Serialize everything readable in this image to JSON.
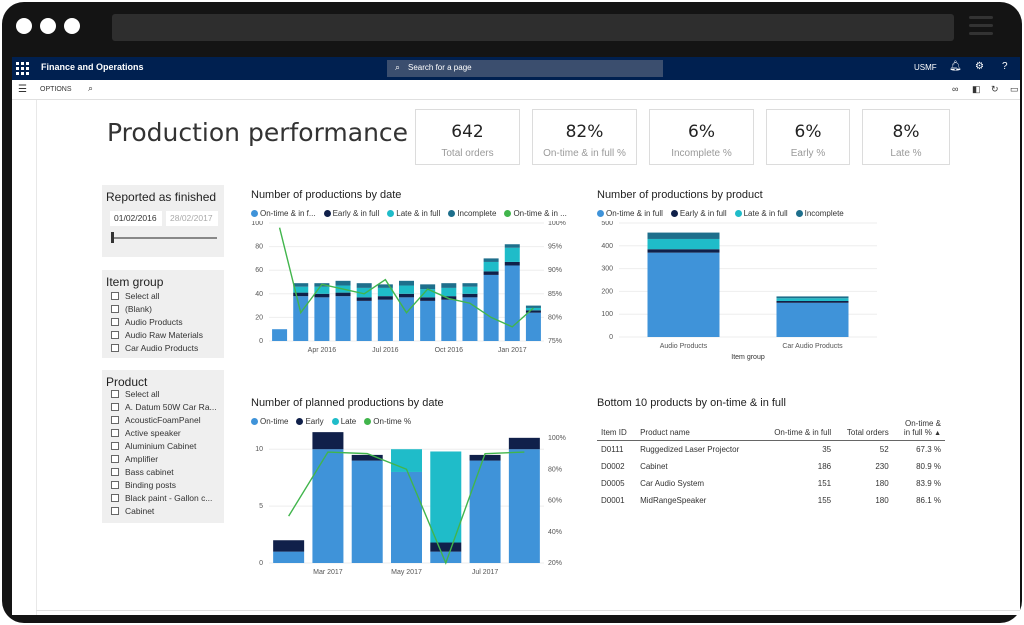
{
  "app": {
    "name": "Finance and Operations",
    "search_placeholder": "Search for a page",
    "company": "USMF",
    "options_label": "OPTIONS"
  },
  "icons": {
    "waffle": "app-launcher-icon",
    "search": "search-icon",
    "bell": "bell-icon",
    "gear": "gear-icon",
    "help": "help-icon",
    "menu": "hamburger-icon",
    "link": "link-icon",
    "office": "office-icon",
    "refresh": "refresh-icon"
  },
  "page": {
    "title": "Production performance"
  },
  "kpis": [
    {
      "value": "642",
      "label": "Total orders"
    },
    {
      "value": "82%",
      "label": "On-time & in full %"
    },
    {
      "value": "6%",
      "label": "Incomplete %"
    },
    {
      "value": "6%",
      "label": "Early %"
    },
    {
      "value": "8%",
      "label": "Late %"
    }
  ],
  "slicers": {
    "reported": {
      "title": "Reported as finished",
      "start": "01/02/2016",
      "end": "28/02/2017"
    },
    "item_group": {
      "title": "Item group",
      "items": [
        "Select all",
        "(Blank)",
        "Audio Products",
        "Audio Raw Materials",
        "Car Audio Products"
      ]
    },
    "product": {
      "title": "Product",
      "items": [
        "Select all",
        "A. Datum 50W Car Ra...",
        "AcousticFoamPanel",
        "Active speaker",
        "Aluminium Cabinet",
        "Amplifier",
        "Bass cabinet",
        "Binding posts",
        "Black paint - Gallon c...",
        "Cabinet"
      ]
    }
  },
  "colors": {
    "ontime": "#3f93d9",
    "early": "#10204a",
    "late": "#1fbcc9",
    "incomplete": "#1e6f8c",
    "ontime_pct": "#41b54c",
    "nav": "#002050"
  },
  "chart_data": [
    {
      "type": "bar",
      "title": "Number of productions by date",
      "legend": [
        "On-time & in f...",
        "Early & in full",
        "Late & in full",
        "Incomplete",
        "On-time & in ..."
      ],
      "x_tick_labels": [
        "Apr 2016",
        "Jul 2016",
        "Oct 2016",
        "Jan 2017"
      ],
      "y_ticks": [
        "0",
        "20",
        "40",
        "60",
        "80",
        "100"
      ],
      "y2_ticks": [
        "75%",
        "80%",
        "85%",
        "90%",
        "95%",
        "100%"
      ],
      "ylim": [
        0,
        100
      ],
      "y2lim": [
        75,
        100
      ],
      "categories": [
        "Feb 2016",
        "Mar 2016",
        "Apr 2016",
        "May 2016",
        "Jun 2016",
        "Jul 2016",
        "Aug 2016",
        "Sep 2016",
        "Oct 2016",
        "Nov 2016",
        "Dec 2016",
        "Jan 2017",
        "Feb 2017"
      ],
      "series": [
        {
          "name": "On-time & in f...",
          "values": [
            10,
            38,
            37,
            38,
            34,
            35,
            37,
            34,
            35,
            37,
            56,
            64,
            24
          ]
        },
        {
          "name": "Early & in full",
          "values": [
            0,
            3,
            3,
            3,
            3,
            3,
            3,
            3,
            3,
            3,
            3,
            3,
            2
          ]
        },
        {
          "name": "Late & in full",
          "values": [
            0,
            5,
            6,
            6,
            8,
            7,
            7,
            7,
            7,
            6,
            8,
            12,
            2
          ]
        },
        {
          "name": "Incomplete",
          "values": [
            0,
            3,
            3,
            4,
            4,
            3,
            4,
            4,
            4,
            3,
            3,
            3,
            2
          ]
        }
      ],
      "line": {
        "name": "On-time & in ...",
        "values": [
          99,
          81,
          87,
          86,
          85,
          88,
          81,
          86,
          84,
          83,
          80,
          78,
          82
        ]
      }
    },
    {
      "type": "bar",
      "title": "Number of productions by product",
      "legend": [
        "On-time & in full",
        "Early & in full",
        "Late & in full",
        "Incomplete"
      ],
      "xlabel": "Item group",
      "y_ticks": [
        "0",
        "100",
        "200",
        "300",
        "400",
        "500"
      ],
      "ylim": [
        0,
        500
      ],
      "categories": [
        "Audio Products",
        "Car Audio Products"
      ],
      "series": [
        {
          "name": "On-time & in full",
          "values": [
            370,
            150
          ]
        },
        {
          "name": "Early & in full",
          "values": [
            15,
            8
          ]
        },
        {
          "name": "Late & in full",
          "values": [
            45,
            12
          ]
        },
        {
          "name": "Incomplete",
          "values": [
            28,
            8
          ]
        }
      ]
    },
    {
      "type": "bar",
      "title": "Number of planned productions by date",
      "legend": [
        "On-time",
        "Early",
        "Late",
        "On-time %"
      ],
      "x_tick_labels": [
        "Mar 2017",
        "May 2017",
        "Jul 2017"
      ],
      "y_ticks": [
        "0",
        "5",
        "10"
      ],
      "y2_ticks": [
        "20%",
        "40%",
        "60%",
        "80%",
        "100%"
      ],
      "ylim": [
        0,
        11.6
      ],
      "y2lim": [
        20,
        100
      ],
      "categories": [
        "Feb 2017",
        "Mar 2017",
        "Apr 2017",
        "May 2017",
        "Jun 2017",
        "Jul 2017",
        "Aug 2017"
      ],
      "series": [
        {
          "name": "On-time",
          "values": [
            1,
            10,
            9,
            8,
            1,
            9,
            10
          ]
        },
        {
          "name": "Early",
          "values": [
            1,
            1.5,
            0.5,
            0,
            0.8,
            0.5,
            1
          ]
        },
        {
          "name": "Late",
          "values": [
            0,
            0,
            0,
            2,
            8,
            0,
            0
          ]
        }
      ],
      "line": {
        "name": "On-time %",
        "values": [
          50,
          91,
          90,
          80,
          20,
          90,
          91
        ]
      }
    },
    {
      "type": "table",
      "title": "Bottom 10 products by on-time & in full",
      "columns": [
        "Item ID",
        "Product name",
        "On-time & in full",
        "Total orders",
        "On-time & in full %"
      ],
      "col_head_last": [
        "On-time &",
        "in full %"
      ],
      "rows": [
        [
          "D0111",
          "Ruggedized Laser Projector",
          "35",
          "52",
          "67.3 %"
        ],
        [
          "D0002",
          "Cabinet",
          "186",
          "230",
          "80.9 %"
        ],
        [
          "D0005",
          "Car Audio System",
          "151",
          "180",
          "83.9 %"
        ],
        [
          "D0001",
          "MidRangeSpeaker",
          "155",
          "180",
          "86.1 %"
        ]
      ]
    }
  ]
}
